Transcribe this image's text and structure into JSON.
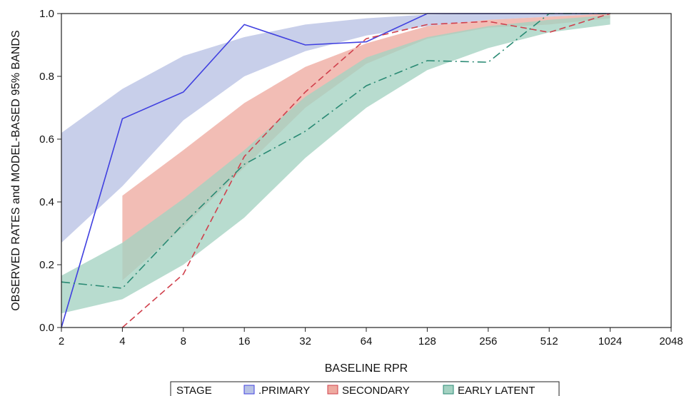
{
  "chart_data": {
    "type": "line",
    "xlabel": "BASELINE RPR",
    "ylabel": "OBSERVED RATES and MODEL-BASED 95% BANDS",
    "x_scale": "log2",
    "xlim": [
      2,
      2048
    ],
    "ylim": [
      0,
      1
    ],
    "x_ticks": [
      2,
      4,
      8,
      16,
      32,
      64,
      128,
      256,
      512,
      1024,
      2048
    ],
    "x_tick_labels": [
      "2",
      "4",
      "8",
      "16",
      "32",
      "64",
      "128",
      "256",
      "512",
      "1024",
      "2048"
    ],
    "y_ticks": [
      0,
      0.2,
      0.4,
      0.6,
      0.8,
      1.0
    ],
    "y_tick_labels": [
      "0.0",
      "0.2",
      "0.4",
      "0.6",
      "0.8",
      "1.0"
    ],
    "grid": false,
    "legend": {
      "title": "STAGE",
      "position": "bottom",
      "entries": [
        ".PRIMARY",
        "SECONDARY",
        "EARLY LATENT"
      ]
    },
    "series": [
      {
        "name": ".PRIMARY",
        "color": "#4040e0",
        "line_style": "solid",
        "band_color": "#b8c2e4",
        "x": [
          2,
          4,
          8,
          16,
          32,
          64,
          128,
          256,
          512,
          1024
        ],
        "y": [
          0.0,
          0.665,
          0.75,
          0.965,
          0.9,
          0.91,
          1.0,
          1.0,
          1.0,
          1.0
        ],
        "band_lower": [
          0.27,
          0.45,
          0.66,
          0.8,
          0.88,
          0.93,
          0.96,
          0.98,
          0.99,
          1.0
        ],
        "band_upper": [
          0.62,
          0.76,
          0.865,
          0.925,
          0.965,
          0.985,
          0.997,
          1.0,
          1.0,
          1.0
        ]
      },
      {
        "name": "SECONDARY",
        "color": "#d0404c",
        "line_style": "dashed",
        "band_color": "#eeaaa0",
        "x": [
          4,
          8,
          16,
          32,
          64,
          128,
          256,
          512,
          1024
        ],
        "y": [
          0.0,
          0.17,
          0.545,
          0.75,
          0.92,
          0.965,
          0.975,
          0.94,
          1.0
        ],
        "band_lower": [
          0.15,
          0.32,
          0.51,
          0.7,
          0.84,
          0.92,
          0.955,
          0.965,
          0.985
        ],
        "band_upper": [
          0.42,
          0.565,
          0.715,
          0.83,
          0.905,
          0.96,
          0.98,
          0.99,
          1.0
        ]
      },
      {
        "name": "EARLY LATENT",
        "color": "#2a8a74",
        "line_style": "dashdot",
        "band_color": "#a4d2c2",
        "x": [
          2,
          4,
          8,
          16,
          32,
          64,
          128,
          256,
          512,
          1024
        ],
        "y": [
          0.145,
          0.125,
          0.33,
          0.52,
          0.625,
          0.77,
          0.85,
          0.845,
          1.0,
          1.0
        ],
        "band_lower": [
          0.045,
          0.09,
          0.2,
          0.35,
          0.54,
          0.7,
          0.82,
          0.89,
          0.94,
          0.965
        ],
        "band_upper": [
          0.165,
          0.27,
          0.41,
          0.565,
          0.735,
          0.86,
          0.925,
          0.96,
          0.98,
          0.995
        ]
      }
    ]
  }
}
